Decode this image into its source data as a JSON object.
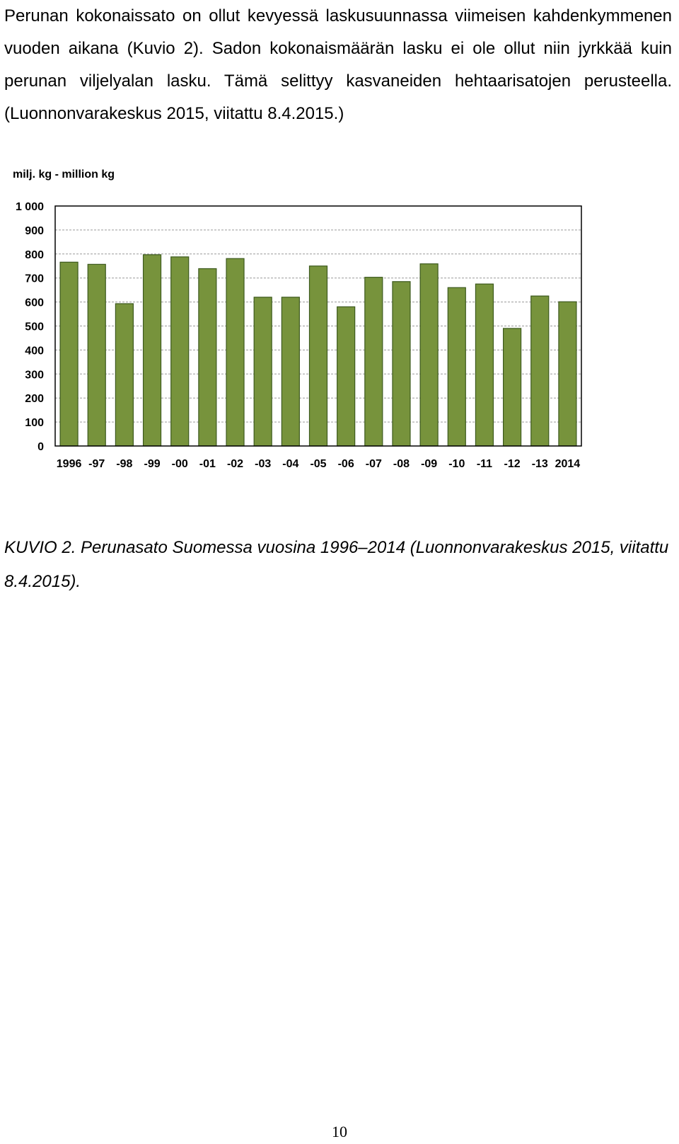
{
  "document": {
    "paragraph": "Perunan kokonaissato on ollut kevyessä laskusuunnassa viimeisen kahden­kymmenen vuoden aikana (Kuvio 2). Sadon kokonaismäärän lasku ei ole ollut niin jyrkkää kuin perunan viljelyalan lasku. Tämä selittyy kasvaneiden hehtaari­satojen perusteella. (Luonnonvarakeskus 2015, viitattu 8.4.2015.)",
    "caption": "KUVIO 2. Perunasato Suomessa vuosina 1996–2014 (Luonnonvarakeskus 2015, viitattu 8.4.2015).",
    "page_number": "10"
  },
  "colors": {
    "bar_fill": "#77933c",
    "bar_stroke": "#3d5a1e",
    "grid": "#9a9a9a",
    "text": "#000000"
  },
  "chart_data": {
    "type": "bar",
    "ylabel": "milj. kg - million kg",
    "xlabel": "",
    "categories": [
      "1996",
      "-97",
      "-98",
      "-99",
      "-00",
      "-01",
      "-02",
      "-03",
      "-04",
      "-05",
      "-06",
      "-07",
      "-08",
      "-09",
      "-10",
      "-11",
      "-12",
      "-13",
      "2014"
    ],
    "values": [
      766,
      757,
      593,
      797,
      788,
      739,
      781,
      620,
      620,
      750,
      580,
      703,
      685,
      759,
      660,
      675,
      490,
      625,
      601
    ],
    "yticks": [
      "0",
      "100",
      "200",
      "300",
      "400",
      "500",
      "600",
      "700",
      "800",
      "900",
      "1 000"
    ],
    "ylim": [
      0,
      1000
    ],
    "grid": true,
    "legend": "none"
  }
}
